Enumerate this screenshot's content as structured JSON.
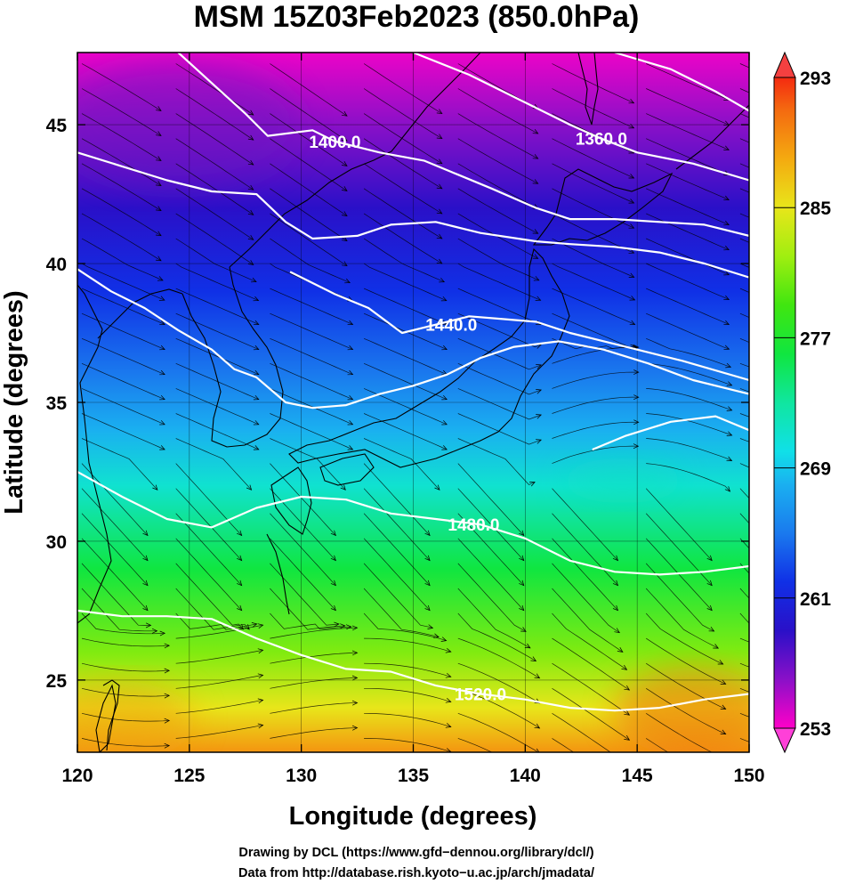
{
  "chart_data": {
    "type": "heatmap",
    "title": "MSM 15Z03Feb2023 (850.0hPa)",
    "xlabel": "Longitude (degrees)",
    "ylabel": "Latitude  (degrees)",
    "xlim": [
      120,
      150
    ],
    "ylim": [
      22.4,
      47.6
    ],
    "x_ticks": [
      120,
      125,
      130,
      135,
      140,
      145,
      150
    ],
    "x_tick_labels": [
      "120",
      "125",
      "130",
      "135",
      "140",
      "145",
      "150"
    ],
    "y_ticks": [
      25,
      30,
      35,
      40,
      45
    ],
    "y_tick_labels": [
      "25",
      "30",
      "35",
      "40",
      "45"
    ],
    "grid": true,
    "colorbar": {
      "min": 253,
      "max": 293,
      "labels": [
        "293",
        "285",
        "277",
        "269",
        "261",
        "253"
      ],
      "label_values": [
        293,
        285,
        277,
        269,
        261,
        253
      ],
      "stops": [
        {
          "value": 253,
          "color": "#ff00c8"
        },
        {
          "value": 256,
          "color": "#8a10c8"
        },
        {
          "value": 259,
          "color": "#2a10c8"
        },
        {
          "value": 262,
          "color": "#1030e6"
        },
        {
          "value": 265,
          "color": "#1a7aee"
        },
        {
          "value": 268,
          "color": "#1ab0f0"
        },
        {
          "value": 270,
          "color": "#10e0e8"
        },
        {
          "value": 273,
          "color": "#10e6a0"
        },
        {
          "value": 276,
          "color": "#10e640"
        },
        {
          "value": 279,
          "color": "#40e610"
        },
        {
          "value": 282,
          "color": "#a0ee10"
        },
        {
          "value": 285,
          "color": "#e8e61a"
        },
        {
          "value": 288,
          "color": "#f4aa10"
        },
        {
          "value": 291,
          "color": "#f46a10"
        },
        {
          "value": 293,
          "color": "#f42a10"
        }
      ]
    },
    "temperature_rows": [
      {
        "lat": 47.6,
        "K": 253.5
      },
      {
        "lat": 45,
        "K": 256
      },
      {
        "lat": 42,
        "K": 259
      },
      {
        "lat": 39,
        "K": 262
      },
      {
        "lat": 36,
        "K": 265
      },
      {
        "lat": 34,
        "K": 268
      },
      {
        "lat": 32,
        "K": 271
      },
      {
        "lat": 29,
        "K": 276
      },
      {
        "lat": 26,
        "K": 281
      },
      {
        "lat": 24,
        "K": 285
      },
      {
        "lat": 22.4,
        "K": 289
      }
    ],
    "contour_labels": [
      {
        "text": "1360.0",
        "lon": 143.4,
        "lat": 44.5
      },
      {
        "text": "1400.0",
        "lon": 131.5,
        "lat": 44.4
      },
      {
        "text": "1440.0",
        "lon": 136.7,
        "lat": 37.8
      },
      {
        "text": "1480.0",
        "lon": 137.7,
        "lat": 30.6
      },
      {
        "text": "1520.0",
        "lon": 138.0,
        "lat": 24.5
      }
    ],
    "contours": [
      {
        "value": 1360,
        "points": [
          [
            135.0,
            47.6
          ],
          [
            137.5,
            46.8
          ],
          [
            140.0,
            45.8
          ],
          [
            142.0,
            45.0
          ],
          [
            143.4,
            44.5
          ],
          [
            145.0,
            44.0
          ],
          [
            147.5,
            43.6
          ],
          [
            150.0,
            43.0
          ]
        ]
      },
      {
        "value": 1360,
        "points": [
          [
            144.0,
            47.6
          ],
          [
            146.5,
            47.0
          ],
          [
            148.5,
            46.2
          ],
          [
            150.0,
            45.5
          ]
        ]
      },
      {
        "value": 1400,
        "points": [
          [
            120.0,
            44.0
          ],
          [
            122.0,
            43.5
          ],
          [
            124.0,
            43.0
          ],
          [
            126.0,
            42.6
          ],
          [
            128.0,
            42.5
          ],
          [
            129.3,
            41.5
          ],
          [
            130.5,
            40.9
          ],
          [
            132.5,
            41.0
          ],
          [
            134.0,
            41.4
          ],
          [
            136.0,
            41.5
          ],
          [
            138.0,
            41.1
          ],
          [
            140.5,
            40.8
          ],
          [
            142.0,
            40.7
          ],
          [
            144.0,
            40.6
          ],
          [
            146.0,
            40.4
          ],
          [
            148.0,
            40.0
          ],
          [
            150.0,
            39.5
          ]
        ]
      },
      {
        "value": 1400,
        "points": [
          [
            124.5,
            47.6
          ],
          [
            126.0,
            46.5
          ],
          [
            127.5,
            45.4
          ],
          [
            128.5,
            44.6
          ],
          [
            130.5,
            44.8
          ],
          [
            131.5,
            44.4
          ],
          [
            133.5,
            44.0
          ],
          [
            135.5,
            43.7
          ],
          [
            137.0,
            43.2
          ],
          [
            138.5,
            42.7
          ],
          [
            140.5,
            42.0
          ],
          [
            142.0,
            41.6
          ],
          [
            144.0,
            41.6
          ],
          [
            146.0,
            41.5
          ],
          [
            148.0,
            41.4
          ],
          [
            150.0,
            41.0
          ]
        ]
      },
      {
        "value": 1440,
        "points": [
          [
            120.0,
            39.8
          ],
          [
            121.5,
            39.0
          ],
          [
            123.0,
            38.4
          ],
          [
            124.5,
            37.6
          ],
          [
            126.0,
            36.9
          ],
          [
            127.0,
            36.2
          ],
          [
            128.0,
            35.9
          ],
          [
            129.3,
            35.0
          ],
          [
            130.5,
            34.8
          ],
          [
            132.0,
            34.9
          ],
          [
            133.5,
            35.3
          ],
          [
            135.0,
            35.6
          ],
          [
            136.5,
            36.0
          ],
          [
            138.0,
            36.6
          ],
          [
            139.5,
            37.0
          ],
          [
            141.5,
            37.2
          ],
          [
            143.5,
            36.9
          ],
          [
            145.5,
            36.4
          ],
          [
            147.5,
            35.8
          ],
          [
            150.0,
            35.3
          ]
        ]
      },
      {
        "value": 1440,
        "points": [
          [
            129.5,
            39.7
          ],
          [
            131.5,
            38.9
          ],
          [
            133.0,
            38.4
          ],
          [
            134.5,
            37.5
          ],
          [
            136.0,
            37.8
          ],
          [
            137.5,
            38.1
          ],
          [
            139.0,
            38.0
          ],
          [
            140.5,
            37.9
          ],
          [
            142.0,
            37.5
          ],
          [
            144.5,
            37.0
          ],
          [
            147.0,
            36.5
          ],
          [
            150.0,
            35.8
          ]
        ]
      },
      {
        "value": 1480,
        "points": [
          [
            120.0,
            32.5
          ],
          [
            122.0,
            31.6
          ],
          [
            124.0,
            30.8
          ],
          [
            126.0,
            30.5
          ],
          [
            128.0,
            31.2
          ],
          [
            130.0,
            31.6
          ],
          [
            132.0,
            31.5
          ],
          [
            134.0,
            31.0
          ],
          [
            136.0,
            30.8
          ],
          [
            138.0,
            30.6
          ],
          [
            140.0,
            30.1
          ],
          [
            142.0,
            29.3
          ],
          [
            144.0,
            28.9
          ],
          [
            146.0,
            28.8
          ],
          [
            148.0,
            28.9
          ],
          [
            150.0,
            29.1
          ]
        ]
      },
      {
        "value": 1480,
        "points": [
          [
            143.0,
            33.3
          ],
          [
            144.5,
            33.8
          ],
          [
            146.5,
            34.3
          ],
          [
            148.5,
            34.5
          ],
          [
            150.0,
            34.0
          ]
        ]
      },
      {
        "value": 1520,
        "points": [
          [
            120.0,
            27.5
          ],
          [
            122.0,
            27.3
          ],
          [
            124.0,
            27.3
          ],
          [
            126.0,
            27.2
          ],
          [
            128.0,
            26.5
          ],
          [
            130.0,
            25.9
          ],
          [
            132.0,
            25.4
          ],
          [
            134.0,
            25.3
          ],
          [
            136.0,
            24.8
          ],
          [
            138.0,
            24.5
          ],
          [
            140.0,
            24.3
          ],
          [
            142.0,
            24.0
          ],
          [
            144.0,
            23.9
          ],
          [
            146.0,
            24.0
          ],
          [
            148.0,
            24.3
          ],
          [
            150.0,
            24.5
          ]
        ]
      }
    ]
  }
}
